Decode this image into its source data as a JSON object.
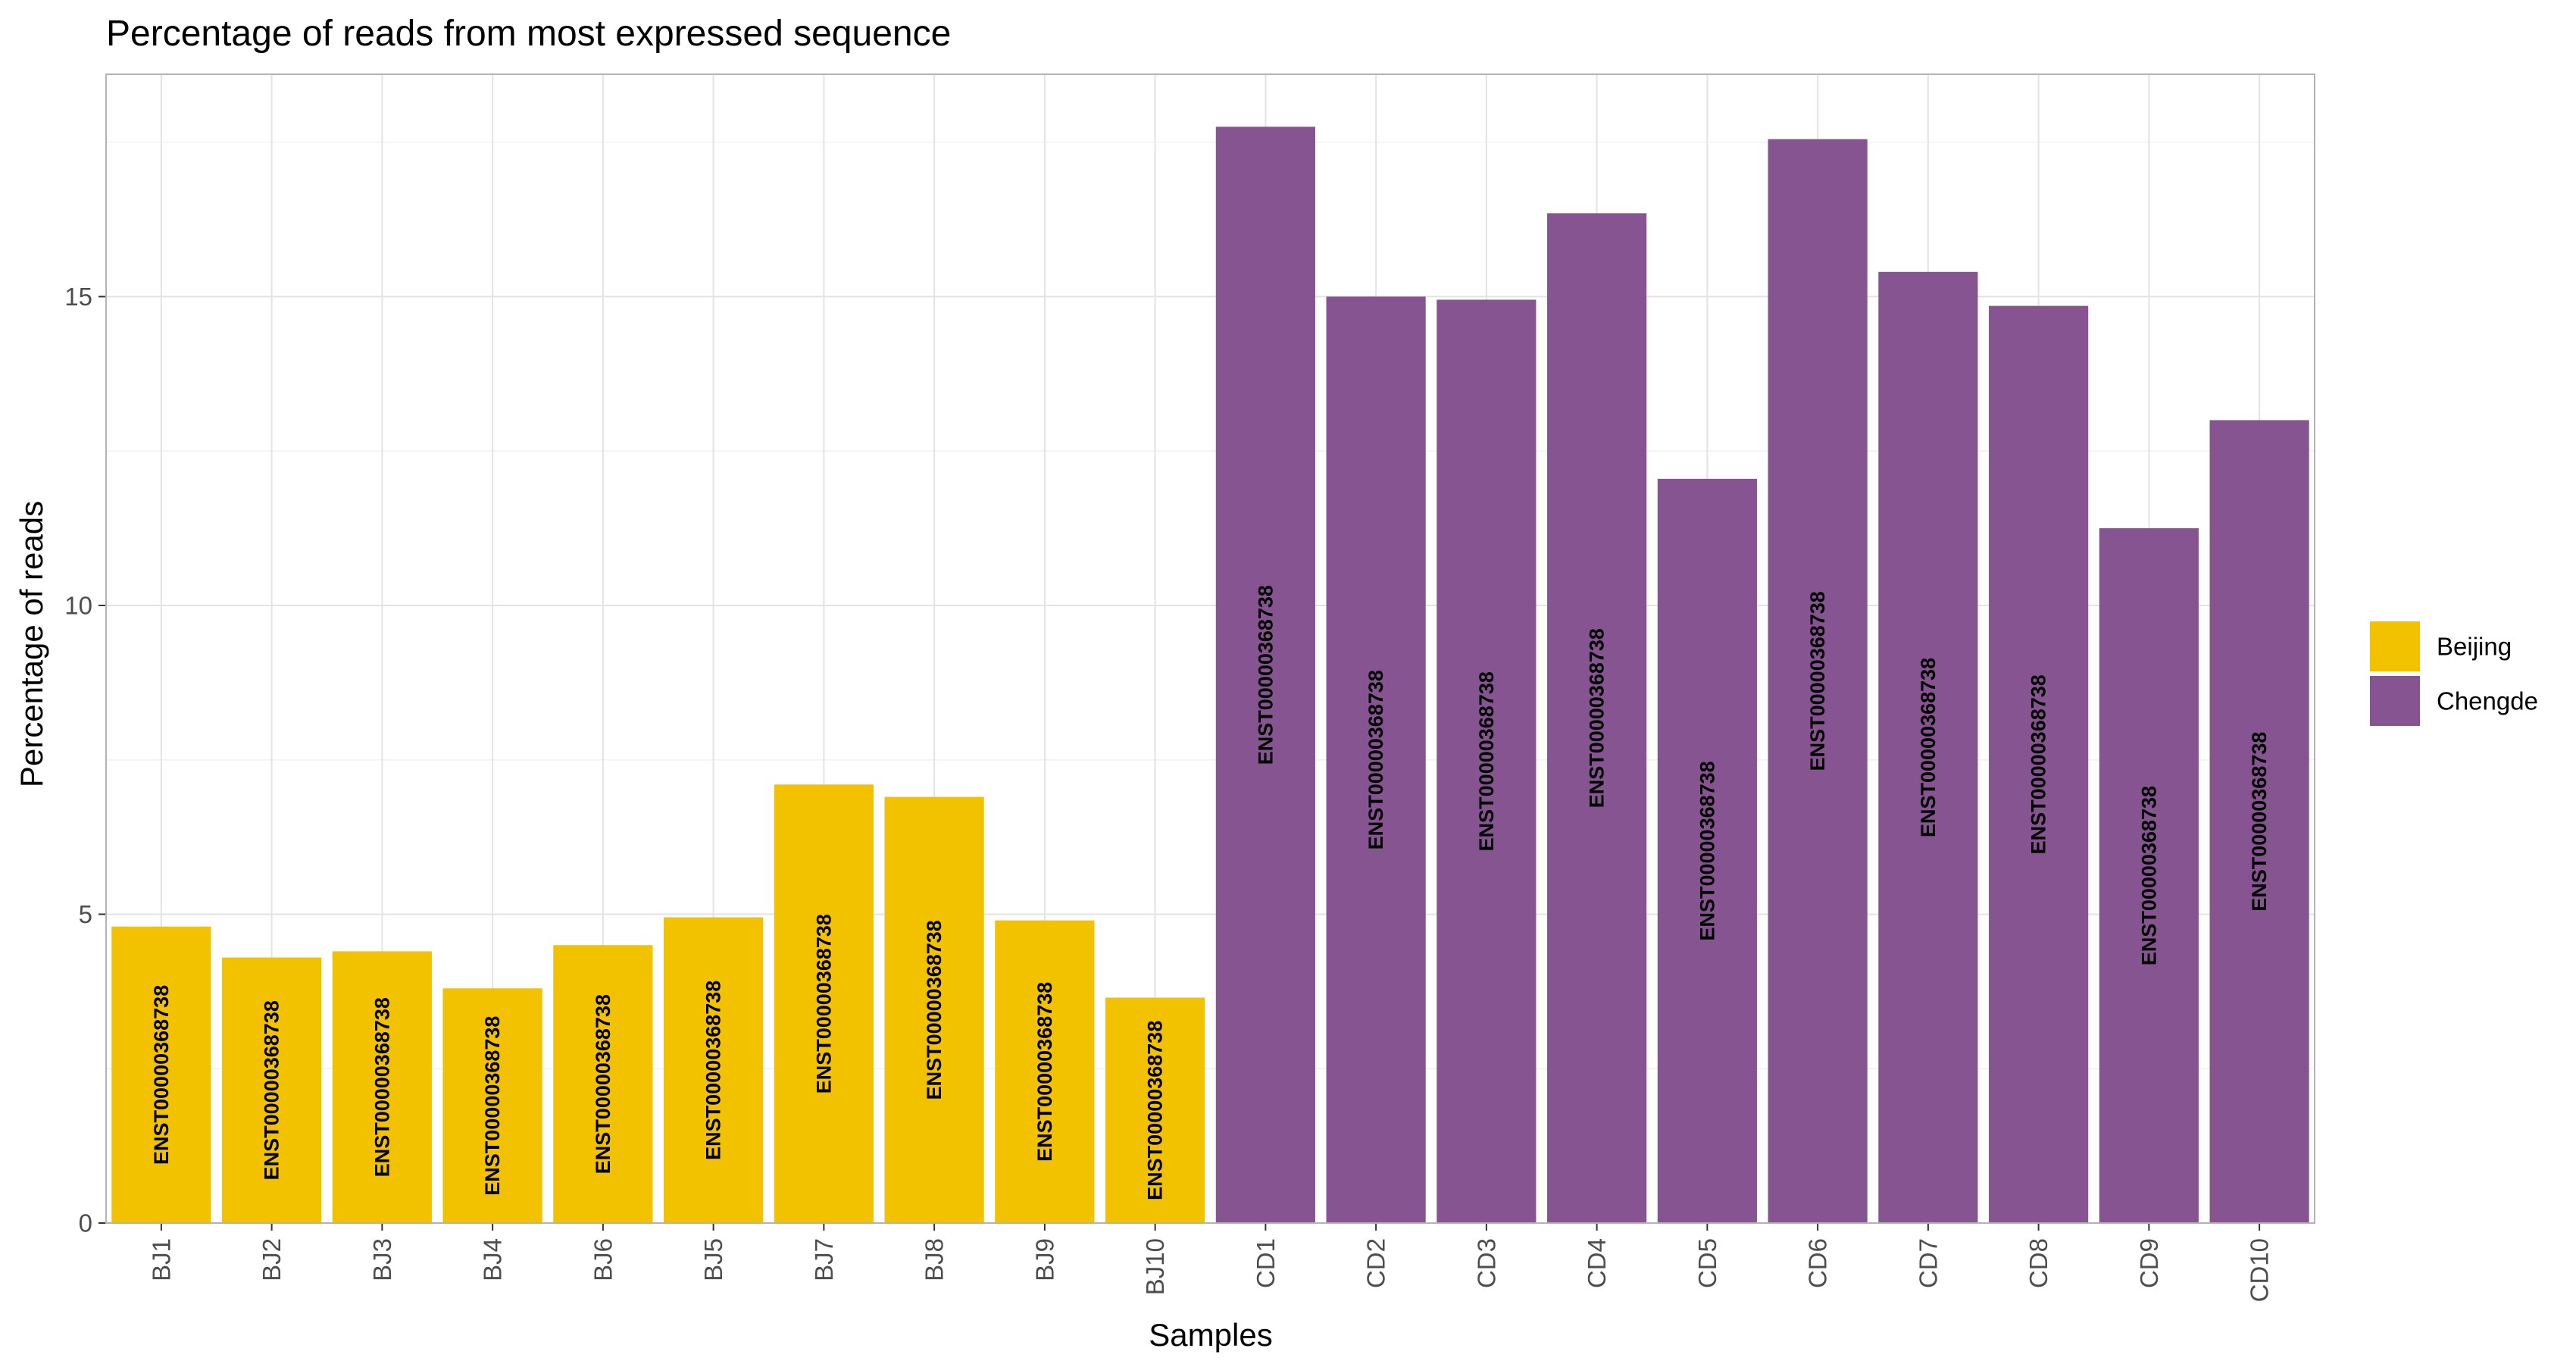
{
  "chart_data": {
    "type": "bar",
    "title": "Percentage of reads from most expressed sequence",
    "xlabel": "Samples",
    "ylabel": "Percentage of reads",
    "ylim": [
      0,
      18.6
    ],
    "yticks": [
      0,
      5,
      10,
      15
    ],
    "grid": true,
    "legend_position": "right",
    "categories": [
      "BJ1",
      "BJ2",
      "BJ3",
      "BJ4",
      "BJ6",
      "BJ5",
      "BJ7",
      "BJ8",
      "BJ9",
      "BJ10",
      "CD1",
      "CD2",
      "CD3",
      "CD4",
      "CD5",
      "CD6",
      "CD7",
      "CD8",
      "CD9",
      "CD10"
    ],
    "values": [
      4.8,
      4.3,
      4.4,
      3.8,
      4.5,
      4.95,
      7.1,
      6.9,
      4.9,
      3.65,
      17.75,
      15.0,
      14.95,
      16.35,
      12.05,
      17.55,
      15.4,
      14.85,
      11.25,
      13.0
    ],
    "groups": [
      "Beijing",
      "Beijing",
      "Beijing",
      "Beijing",
      "Beijing",
      "Beijing",
      "Beijing",
      "Beijing",
      "Beijing",
      "Beijing",
      "Chengde",
      "Chengde",
      "Chengde",
      "Chengde",
      "Chengde",
      "Chengde",
      "Chengde",
      "Chengde",
      "Chengde",
      "Chengde"
    ],
    "bar_labels": [
      "ENST00000368738",
      "ENST00000368738",
      "ENST00000368738",
      "ENST00000368738",
      "ENST00000368738",
      "ENST00000368738",
      "ENST00000368738",
      "ENST00000368738",
      "ENST00000368738",
      "ENST00000368738",
      "ENST00000368738",
      "ENST00000368738",
      "ENST00000368738",
      "ENST00000368738",
      "ENST00000368738",
      "ENST00000368738",
      "ENST00000368738",
      "ENST00000368738",
      "ENST00000368738",
      "ENST00000368738"
    ],
    "legend": [
      {
        "name": "Beijing",
        "color": "#F2C100"
      },
      {
        "name": "Chengde",
        "color": "#865591"
      }
    ]
  }
}
